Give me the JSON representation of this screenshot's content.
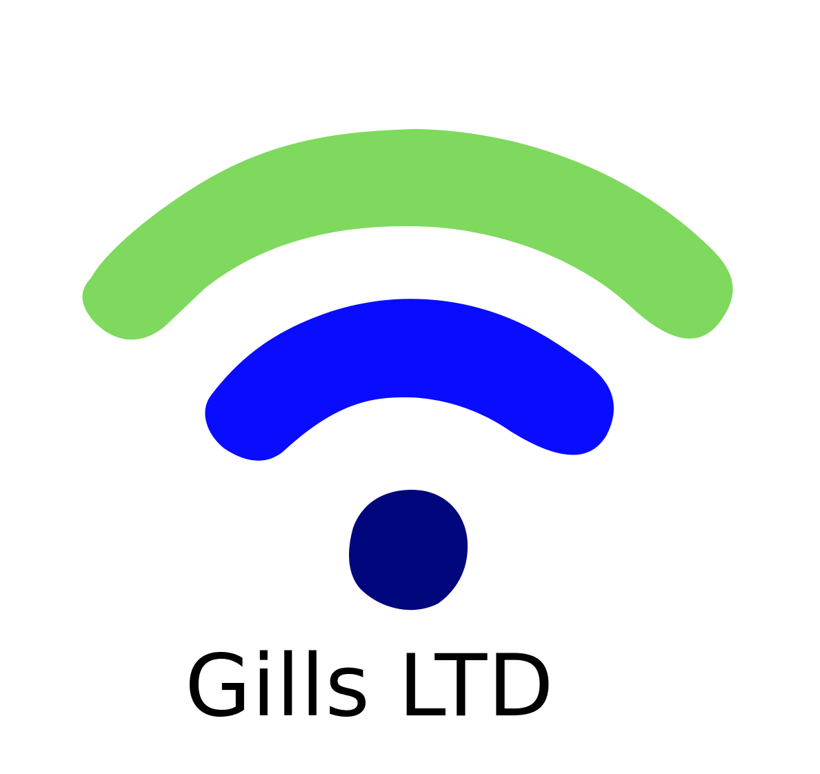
{
  "logo": {
    "company_name": "Gills LTD",
    "icon_name": "wifi-signal-icon",
    "colors": {
      "outer_arc": "#7ed95e",
      "inner_arc": "#0a0cff",
      "dot": "#00067c",
      "text": "#000000",
      "background": "#ffffff"
    }
  }
}
